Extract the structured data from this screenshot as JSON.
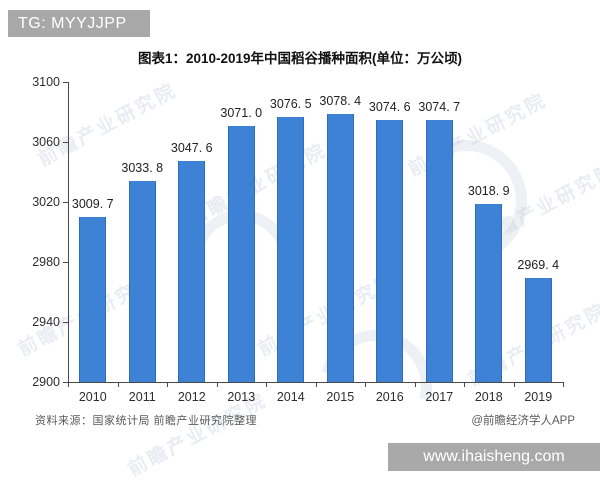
{
  "badge": {
    "text": "TG: MYYJJPP"
  },
  "title": "图表1：2010-2019年中国稻谷播种面积(单位：万公顷)",
  "source_note": "资料来源：国家统计局 前瞻产业研究院整理",
  "credit": "@前瞻经济学人APP",
  "footer_url": "www.ihaisheng.com",
  "watermark_text": "前瞻产业研究院",
  "colors": {
    "bar": "#3d82d4",
    "bar_edge": "#2f6cb8",
    "badge_bg": "#a8a8a8",
    "footer_bg": "#a9a9a9",
    "axis": "#4a4a4a",
    "value_text": "#222222",
    "tick_text": "#2e2e2e",
    "note_text": "#5a5a5a",
    "watermark": "#ccd4e2"
  },
  "chart_data": {
    "type": "bar",
    "title": "图表1：2010-2019年中国稻谷播种面积(单位：万公顷)",
    "unit": "万公顷",
    "categories": [
      "2010",
      "2011",
      "2012",
      "2013",
      "2014",
      "2015",
      "2016",
      "2017",
      "2018",
      "2019"
    ],
    "values": [
      3009.7,
      3033.8,
      3047.6,
      3071.0,
      3076.5,
      3078.4,
      3074.6,
      3074.7,
      3018.9,
      2969.4
    ],
    "value_labels": [
      "3009. 7",
      "3033. 8",
      "3047. 6",
      "3071. 0",
      "3076. 5",
      "3078. 4",
      "3074. 6",
      "3074. 7",
      "3018. 9",
      "2969. 4"
    ],
    "ylim": [
      2900,
      3100
    ],
    "yticks": [
      2900,
      2940,
      2980,
      3020,
      3060,
      3100
    ],
    "xlabel": "",
    "ylabel": "",
    "grid": false,
    "legend": "none"
  }
}
